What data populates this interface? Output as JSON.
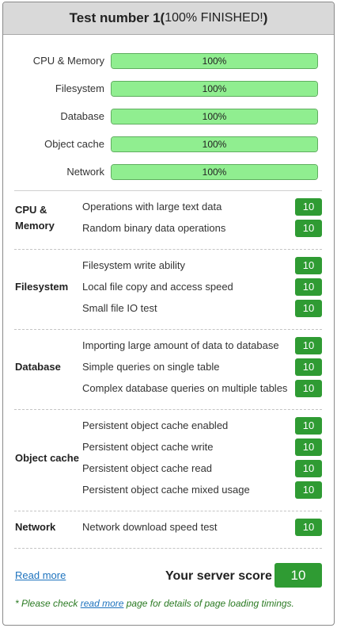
{
  "header": {
    "title": "Test number 1",
    "paren_open": " (",
    "status": "100% FINISHED!",
    "paren_close": ")"
  },
  "progress": [
    {
      "label": "CPU & Memory",
      "value": 100,
      "text": "100%"
    },
    {
      "label": "Filesystem",
      "value": 100,
      "text": "100%"
    },
    {
      "label": "Database",
      "value": 100,
      "text": "100%"
    },
    {
      "label": "Object cache",
      "value": 100,
      "text": "100%"
    },
    {
      "label": "Network",
      "value": 100,
      "text": "100%"
    }
  ],
  "groups": [
    {
      "name_lines": [
        "CPU &",
        "Memory"
      ],
      "items": [
        {
          "label": "Operations with large text data",
          "score": "10"
        },
        {
          "label": "Random binary data operations",
          "score": "10"
        }
      ]
    },
    {
      "name_lines": [
        "Filesystem"
      ],
      "items": [
        {
          "label": "Filesystem write ability",
          "score": "10"
        },
        {
          "label": "Local file copy and access speed",
          "score": "10"
        },
        {
          "label": "Small file IO test",
          "score": "10"
        }
      ]
    },
    {
      "name_lines": [
        "Database"
      ],
      "items": [
        {
          "label": "Importing large amount of data to database",
          "score": "10"
        },
        {
          "label": "Simple queries on single table",
          "score": "10"
        },
        {
          "label": "Complex database queries on multiple tables",
          "score": "10"
        }
      ]
    },
    {
      "name_lines": [
        "Object cache"
      ],
      "items": [
        {
          "label": "Persistent object cache enabled",
          "score": "10"
        },
        {
          "label": "Persistent object cache write",
          "score": "10"
        },
        {
          "label": "Persistent object cache read",
          "score": "10"
        },
        {
          "label": "Persistent object cache mixed usage",
          "score": "10"
        }
      ]
    },
    {
      "name_lines": [
        "Network"
      ],
      "items": [
        {
          "label": "Network download speed test",
          "score": "10"
        }
      ]
    }
  ],
  "footer": {
    "read_more": "Read more",
    "server_score_label": "Your server score",
    "server_score": "10",
    "note_prefix": "* Please check ",
    "note_link": "read more",
    "note_suffix": " page for details of page loading timings."
  },
  "colors": {
    "bar_fill": "#90ee90",
    "score_bg": "#2f9b33",
    "link": "#1e73be",
    "note": "#2a7a22"
  }
}
